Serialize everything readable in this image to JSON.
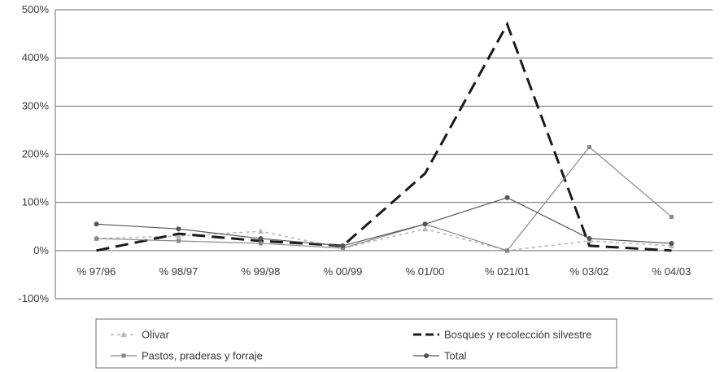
{
  "chart_data": {
    "type": "line",
    "categories": [
      "% 97/96",
      "% 98/97",
      "% 99/98",
      "% 00/99",
      "% 01/00",
      "% 021/01",
      "% 03/02",
      "% 04/03"
    ],
    "ylim": [
      -100,
      500
    ],
    "yticks": [
      -100,
      0,
      100,
      200,
      300,
      400,
      500
    ],
    "ytick_labels": [
      "-100%",
      "0%",
      "100%",
      "200%",
      "300%",
      "400%",
      "500%"
    ],
    "grid": true,
    "legend_position": "bottom",
    "series": [
      {
        "name": "Olivar",
        "values": [
          25,
          30,
          40,
          5,
          45,
          0,
          20,
          10
        ],
        "color": "#b8b8b8",
        "dash": "dotted",
        "marker": "triangle"
      },
      {
        "name": "Bosques y recolección silvestre",
        "values": [
          0,
          35,
          20,
          10,
          160,
          470,
          10,
          0
        ],
        "color": "#1a1a1a",
        "dash": "dashed",
        "marker": "none"
      },
      {
        "name": "Pastos, praderas y forraje",
        "values": [
          25,
          20,
          15,
          5,
          55,
          0,
          215,
          70
        ],
        "color": "#888888",
        "dash": "solid",
        "marker": "square"
      },
      {
        "name": "Total",
        "values": [
          55,
          45,
          25,
          10,
          55,
          110,
          25,
          15
        ],
        "color": "#555555",
        "dash": "solid",
        "marker": "circle"
      }
    ]
  }
}
